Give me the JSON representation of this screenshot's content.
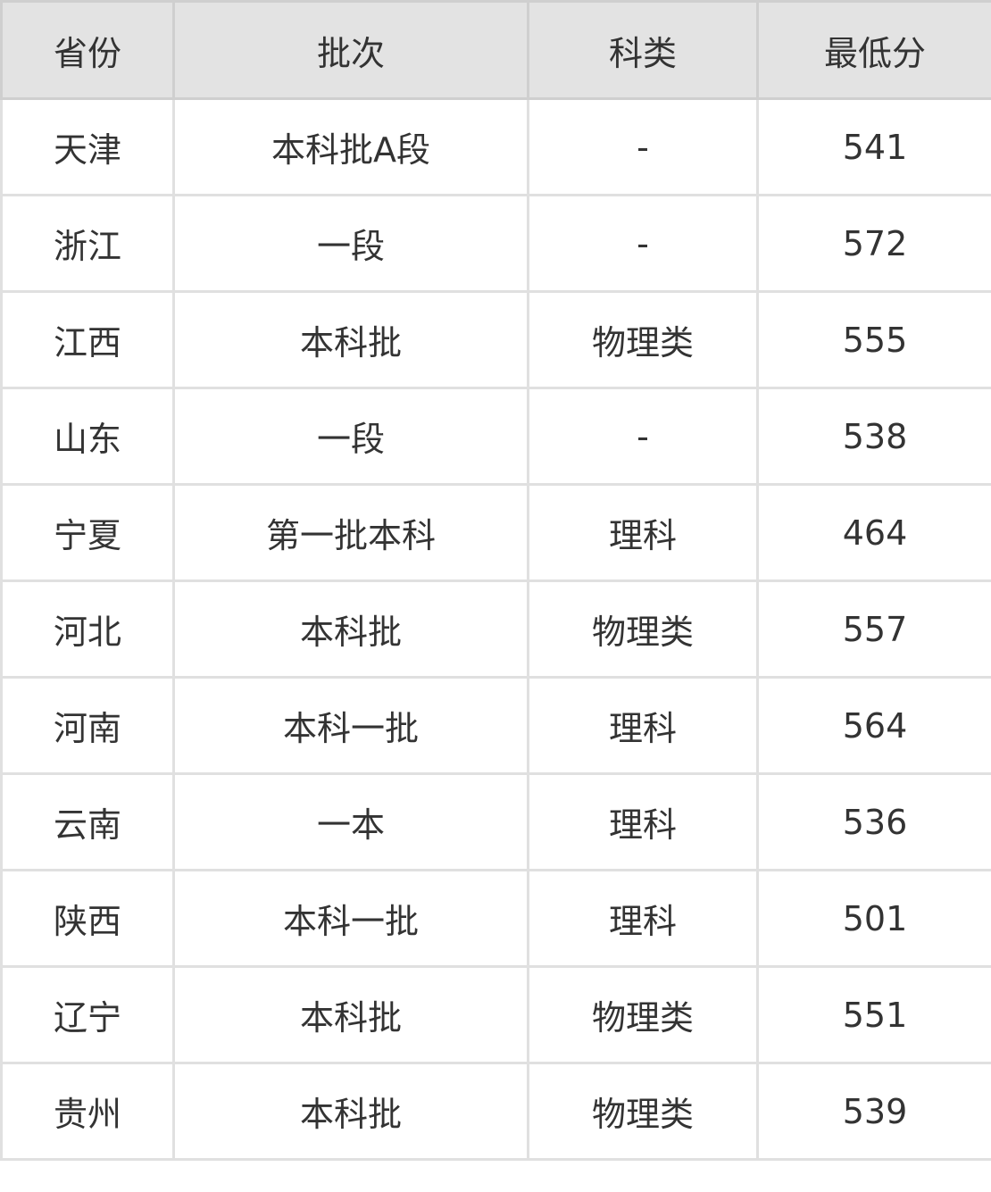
{
  "table": {
    "headers": [
      "省份",
      "批次",
      "科类",
      "最低分"
    ],
    "rows": [
      [
        "天津",
        "本科批A段",
        "-",
        "541"
      ],
      [
        "浙江",
        "一段",
        "-",
        "572"
      ],
      [
        "江西",
        "本科批",
        "物理类",
        "555"
      ],
      [
        "山东",
        "一段",
        "-",
        "538"
      ],
      [
        "宁夏",
        "第一批本科",
        "理科",
        "464"
      ],
      [
        "河北",
        "本科批",
        "物理类",
        "557"
      ],
      [
        "河南",
        "本科一批",
        "理科",
        "564"
      ],
      [
        "云南",
        "一本",
        "理科",
        "536"
      ],
      [
        "陕西",
        "本科一批",
        "理科",
        "501"
      ],
      [
        "辽宁",
        "本科批",
        "物理类",
        "551"
      ],
      [
        "贵州",
        "本科批",
        "物理类",
        "539"
      ]
    ]
  }
}
